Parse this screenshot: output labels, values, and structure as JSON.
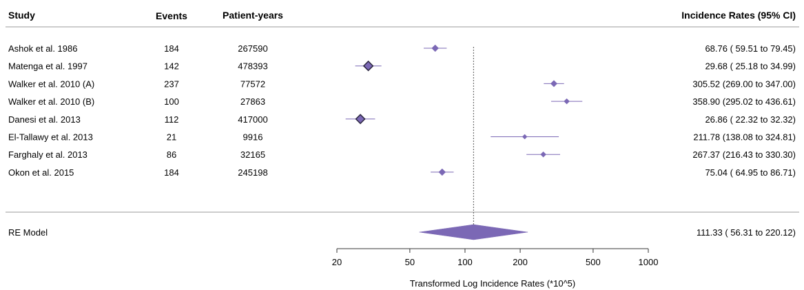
{
  "chart_data": {
    "type": "forest",
    "headers": {
      "study": "Study",
      "events": "Events",
      "patient_years": "Patient-years",
      "ci": "Incidence Rates (95% CI)"
    },
    "studies": [
      {
        "label": "Ashok et al. 1986",
        "events": "184",
        "patient_years": "267590",
        "estimate": 68.76,
        "lower": 59.51,
        "upper": 79.45,
        "ci_text": "68.76 ( 59.51 to  79.45)",
        "marker_size": 1.0
      },
      {
        "label": "Matenga et al. 1997",
        "events": "142",
        "patient_years": "478393",
        "estimate": 29.68,
        "lower": 25.18,
        "upper": 34.99,
        "ci_text": "29.68 ( 25.18 to  34.99)",
        "marker_size": 1.35
      },
      {
        "label": "Walker et al. 2010 (A)",
        "events": "237",
        "patient_years": "77572",
        "estimate": 305.52,
        "lower": 269.0,
        "upper": 347.0,
        "ci_text": "305.52 (269.00 to 347.00)",
        "marker_size": 0.95
      },
      {
        "label": "Walker et al. 2010 (B)",
        "events": "100",
        "patient_years": "27863",
        "estimate": 358.9,
        "lower": 295.02,
        "upper": 436.61,
        "ci_text": "358.90 (295.02 to 436.61)",
        "marker_size": 0.8
      },
      {
        "label": "Danesi et al. 2013",
        "events": "112",
        "patient_years": "417000",
        "estimate": 26.86,
        "lower": 22.32,
        "upper": 32.32,
        "ci_text": "26.86 ( 22.32 to  32.32)",
        "marker_size": 1.3
      },
      {
        "label": "El-Tallawy et al. 2013",
        "events": "21",
        "patient_years": "9916",
        "estimate": 211.78,
        "lower": 138.08,
        "upper": 324.81,
        "ci_text": "211.78 (138.08 to 324.81)",
        "marker_size": 0.7
      },
      {
        "label": "Farghaly et al. 2013",
        "events": "86",
        "patient_years": "32165",
        "estimate": 267.37,
        "lower": 216.43,
        "upper": 330.3,
        "ci_text": "267.37 (216.43 to 330.30)",
        "marker_size": 0.8
      },
      {
        "label": "Okon et al. 2015",
        "events": "184",
        "patient_years": "245198",
        "estimate": 75.04,
        "lower": 64.95,
        "upper": 86.71,
        "ci_text": "75.04 ( 64.95 to  86.71)",
        "marker_size": 1.0
      }
    ],
    "summary": {
      "label": "RE Model",
      "estimate": 111.33,
      "lower": 56.31,
      "upper": 220.12,
      "ci_text": "111.33 ( 56.31 to 220.12)"
    },
    "x_axis": {
      "scale": "log",
      "range": [
        20,
        1000
      ],
      "ticks": [
        20,
        50,
        100,
        200,
        500,
        1000
      ],
      "tick_labels": [
        "20",
        "50",
        "100",
        "200",
        "500",
        "1000"
      ],
      "label": "Transformed Log Incidence Rates (*10^5)"
    },
    "reference_line": 111.33
  },
  "colors": {
    "marker": "#7b68b5",
    "marker_outline": "#2b2640",
    "line": "#7b68b5",
    "text": "#1a1a1a",
    "rule": "#999999"
  }
}
